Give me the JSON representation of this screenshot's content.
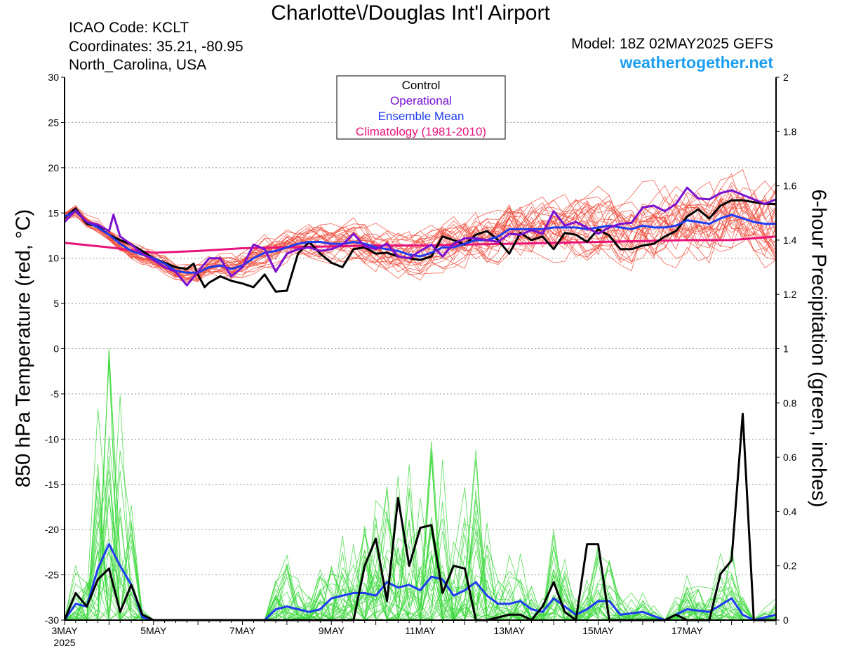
{
  "header": {
    "title": "Charlotte\\/Douglas Int'l Airport",
    "icao": "ICAO Code: KCLT",
    "coordinates": "Coordinates: 35.21, -80.95",
    "region": "North_Carolina, USA",
    "model": "Model: 18Z 02MAY2025 GEFS",
    "site": "weathertogether.net"
  },
  "colors": {
    "control": "#000000",
    "operational": "#7b10d0",
    "ensemble_mean": "#1f3cf0",
    "climatology": "#e8137a",
    "temp_members": "#f04a3a",
    "precip_members": "#3ad83a",
    "site": "#1a9ef0"
  },
  "chart_data": {
    "type": "line",
    "title": "Charlotte\\/Douglas Int'l Airport",
    "xlabel": "",
    "ylabel": "850 hPa Temperature (red, °C)",
    "ylabel_right": "6-hour Precipitation (green, inches)",
    "x_unit": "days after 3MAY2025 00Z",
    "x_ticks": [
      {
        "day": 0,
        "label": "3MAY",
        "sub": "2025"
      },
      {
        "day": 2,
        "label": "5MAY",
        "sub": ""
      },
      {
        "day": 4,
        "label": "7MAY",
        "sub": ""
      },
      {
        "day": 6,
        "label": "9MAY",
        "sub": ""
      },
      {
        "day": 8,
        "label": "11MAY",
        "sub": ""
      },
      {
        "day": 10,
        "label": "13MAY",
        "sub": ""
      },
      {
        "day": 12,
        "label": "15MAY",
        "sub": ""
      },
      {
        "day": 14,
        "label": "17MAY",
        "sub": ""
      }
    ],
    "xlim": [
      0,
      16
    ],
    "ylim_left": [
      -30,
      30
    ],
    "yticks_left": [
      30,
      25,
      20,
      15,
      10,
      5,
      0,
      -5,
      -10,
      -15,
      -20,
      -25,
      -30
    ],
    "ylim_right": [
      0,
      2
    ],
    "yticks_right": [
      "2",
      "1.8",
      "1.6",
      "1.4",
      "1.2",
      "1",
      "0.8",
      "0.6",
      "0.4",
      "0.2",
      "0"
    ],
    "grid": true,
    "legend": {
      "position": "top-center",
      "entries": [
        {
          "label": "Control",
          "color": "#000000"
        },
        {
          "label": "Operational",
          "color": "#7b10d0"
        },
        {
          "label": "Ensemble Mean",
          "color": "#1f3cf0"
        },
        {
          "label": "Climatology (1981-2010)",
          "color": "#e8137a"
        }
      ]
    },
    "temperature": {
      "control": [
        [
          0,
          14.5
        ],
        [
          0.25,
          15.5
        ],
        [
          0.5,
          13.8
        ],
        [
          0.75,
          13.5
        ],
        [
          1,
          12.6
        ],
        [
          1.25,
          12
        ],
        [
          1.5,
          11.5
        ],
        [
          1.75,
          10.8
        ],
        [
          2,
          10
        ],
        [
          2.25,
          9.5
        ],
        [
          2.5,
          9
        ],
        [
          2.75,
          8.8
        ],
        [
          2.9,
          9.4
        ],
        [
          3,
          8.2
        ],
        [
          3.15,
          6.8
        ],
        [
          3.25,
          7.3
        ],
        [
          3.5,
          8
        ],
        [
          3.75,
          7.5
        ],
        [
          4,
          7.2
        ],
        [
          4.25,
          6.8
        ],
        [
          4.5,
          8.2
        ],
        [
          4.75,
          6.3
        ],
        [
          5,
          6.4
        ],
        [
          5.25,
          10.5
        ],
        [
          5.5,
          11.8
        ],
        [
          5.75,
          10.5
        ],
        [
          6,
          9.5
        ],
        [
          6.25,
          9
        ],
        [
          6.5,
          11
        ],
        [
          6.75,
          11.2
        ],
        [
          7,
          10.5
        ],
        [
          7.25,
          10.6
        ],
        [
          7.5,
          10.2
        ],
        [
          7.75,
          10
        ],
        [
          8,
          9.8
        ],
        [
          8.25,
          10.2
        ],
        [
          8.5,
          12.4
        ],
        [
          8.75,
          12
        ],
        [
          9,
          11.5
        ],
        [
          9.25,
          12.6
        ],
        [
          9.5,
          13
        ],
        [
          9.75,
          12
        ],
        [
          10,
          10.5
        ],
        [
          10.25,
          12.8
        ],
        [
          10.5,
          12
        ],
        [
          10.75,
          12.4
        ],
        [
          11,
          11
        ],
        [
          11.25,
          12.8
        ],
        [
          11.5,
          12.6
        ],
        [
          11.75,
          11.8
        ],
        [
          12,
          13.2
        ],
        [
          12.25,
          12.5
        ],
        [
          12.5,
          11
        ],
        [
          12.75,
          11
        ],
        [
          13,
          11.4
        ],
        [
          13.25,
          11.6
        ],
        [
          13.5,
          12.4
        ],
        [
          13.75,
          13
        ],
        [
          14,
          14.6
        ],
        [
          14.25,
          15.4
        ],
        [
          14.5,
          14.4
        ],
        [
          14.75,
          15.8
        ],
        [
          15,
          16.4
        ],
        [
          15.25,
          16.4
        ],
        [
          15.5,
          16.2
        ],
        [
          15.75,
          16
        ],
        [
          16,
          16
        ]
      ],
      "operational": [
        [
          0,
          14
        ],
        [
          0.25,
          15.3
        ],
        [
          0.5,
          14
        ],
        [
          0.75,
          13.7
        ],
        [
          1,
          13
        ],
        [
          1.1,
          14.8
        ],
        [
          1.25,
          12.4
        ],
        [
          1.5,
          11.5
        ],
        [
          1.75,
          10.5
        ],
        [
          2,
          9.8
        ],
        [
          2.25,
          9
        ],
        [
          2.5,
          8.5
        ],
        [
          2.75,
          7
        ],
        [
          3,
          8.5
        ],
        [
          3.25,
          10
        ],
        [
          3.5,
          10
        ],
        [
          3.75,
          8
        ],
        [
          4,
          9
        ],
        [
          4.25,
          11.5
        ],
        [
          4.5,
          11
        ],
        [
          4.75,
          8.5
        ],
        [
          5,
          10.5
        ],
        [
          5.25,
          11
        ],
        [
          5.5,
          11.2
        ],
        [
          5.75,
          10.8
        ],
        [
          6,
          11
        ],
        [
          6.25,
          11.5
        ],
        [
          6.5,
          12.7
        ],
        [
          6.75,
          11.3
        ],
        [
          7,
          11
        ],
        [
          7.25,
          11.6
        ],
        [
          7.5,
          10.2
        ],
        [
          7.75,
          10
        ],
        [
          8,
          10.8
        ],
        [
          8.25,
          11.5
        ],
        [
          8.5,
          10.2
        ],
        [
          8.75,
          11.6
        ],
        [
          9,
          12.2
        ],
        [
          9.25,
          12.2
        ],
        [
          9.5,
          12
        ],
        [
          9.75,
          11.8
        ],
        [
          10,
          12.7
        ],
        [
          10.25,
          12.6
        ],
        [
          10.5,
          13.1
        ],
        [
          10.75,
          12.7
        ],
        [
          11,
          15.2
        ],
        [
          11.25,
          13.6
        ],
        [
          11.5,
          14
        ],
        [
          11.75,
          13.4
        ],
        [
          12,
          12.7
        ],
        [
          12.25,
          13.4
        ],
        [
          12.5,
          13.8
        ],
        [
          12.75,
          13.9
        ],
        [
          13,
          15.6
        ],
        [
          13.25,
          15.8
        ],
        [
          13.5,
          15.2
        ],
        [
          13.75,
          16
        ],
        [
          14,
          17.8
        ],
        [
          14.25,
          16.6
        ],
        [
          14.5,
          16.5
        ],
        [
          14.75,
          17.2
        ],
        [
          15,
          17.5
        ],
        [
          15.25,
          17
        ],
        [
          15.5,
          16.5
        ],
        [
          15.75,
          16
        ],
        [
          16,
          16.5
        ]
      ],
      "ensemble_mean": [
        [
          0,
          14.6
        ],
        [
          0.25,
          15.2
        ],
        [
          0.5,
          14
        ],
        [
          0.75,
          13.4
        ],
        [
          1,
          12.6
        ],
        [
          1.25,
          11.6
        ],
        [
          1.5,
          10.8
        ],
        [
          1.75,
          10.4
        ],
        [
          2,
          10
        ],
        [
          2.25,
          9.4
        ],
        [
          2.5,
          8.6
        ],
        [
          2.75,
          8.4
        ],
        [
          3,
          8.4
        ],
        [
          3.25,
          9
        ],
        [
          3.5,
          9.2
        ],
        [
          3.75,
          8.8
        ],
        [
          4,
          9.2
        ],
        [
          4.25,
          10
        ],
        [
          4.5,
          10.6
        ],
        [
          4.75,
          10.8
        ],
        [
          5,
          11.2
        ],
        [
          5.25,
          11.6
        ],
        [
          5.5,
          11.8
        ],
        [
          5.75,
          11.8
        ],
        [
          6,
          11.6
        ],
        [
          6.25,
          11.6
        ],
        [
          6.5,
          11.8
        ],
        [
          6.75,
          11.6
        ],
        [
          7,
          11.2
        ],
        [
          7.25,
          11
        ],
        [
          7.5,
          10.8
        ],
        [
          7.75,
          10.4
        ],
        [
          8,
          10.2
        ],
        [
          8.25,
          10.6
        ],
        [
          8.5,
          11.2
        ],
        [
          8.75,
          11.2
        ],
        [
          9,
          11.6
        ],
        [
          9.25,
          12
        ],
        [
          9.5,
          12
        ],
        [
          9.75,
          12.4
        ],
        [
          10,
          13.2
        ],
        [
          10.25,
          13.2
        ],
        [
          10.5,
          13.2
        ],
        [
          10.75,
          13.2
        ],
        [
          11,
          13.4
        ],
        [
          11.25,
          13.4
        ],
        [
          11.5,
          13.4
        ],
        [
          11.75,
          13.2
        ],
        [
          12,
          13.4
        ],
        [
          12.25,
          13.6
        ],
        [
          12.5,
          13.4
        ],
        [
          12.75,
          13.2
        ],
        [
          13,
          13.6
        ],
        [
          13.25,
          13.4
        ],
        [
          13.5,
          13.4
        ],
        [
          13.75,
          13.6
        ],
        [
          14,
          14.2
        ],
        [
          14.25,
          14
        ],
        [
          14.5,
          13.8
        ],
        [
          14.75,
          14.4
        ],
        [
          15,
          14.8
        ],
        [
          15.25,
          14.4
        ],
        [
          15.5,
          14
        ],
        [
          15.75,
          13.8
        ],
        [
          16,
          13.8
        ]
      ],
      "climatology": [
        [
          0,
          11.7
        ],
        [
          1,
          11.2
        ],
        [
          2,
          10.6
        ],
        [
          3,
          10.8
        ],
        [
          4,
          11.1
        ],
        [
          5,
          11.2
        ],
        [
          6,
          11.3
        ],
        [
          7,
          11.4
        ],
        [
          8,
          11.4
        ],
        [
          9,
          11.5
        ],
        [
          10,
          11.6
        ],
        [
          11,
          11.7
        ],
        [
          12,
          11.8
        ],
        [
          13,
          11.9
        ],
        [
          14,
          12
        ],
        [
          15,
          12
        ],
        [
          16,
          12.4
        ]
      ]
    },
    "precipitation": {
      "control": [
        [
          0,
          0
        ],
        [
          0.25,
          0.1
        ],
        [
          0.5,
          0.05
        ],
        [
          0.75,
          0.15
        ],
        [
          1,
          0.19
        ],
        [
          1.25,
          0.03
        ],
        [
          1.5,
          0.13
        ],
        [
          1.75,
          0.02
        ],
        [
          2,
          0
        ],
        [
          4,
          0
        ],
        [
          6,
          0
        ],
        [
          6.5,
          0
        ],
        [
          6.75,
          0.2
        ],
        [
          7,
          0.3
        ],
        [
          7.25,
          0.07
        ],
        [
          7.5,
          0.45
        ],
        [
          7.75,
          0.2
        ],
        [
          8,
          0.34
        ],
        [
          8.25,
          0.35
        ],
        [
          8.5,
          0.1
        ],
        [
          8.75,
          0.2
        ],
        [
          9,
          0.19
        ],
        [
          9.25,
          0
        ],
        [
          9.5,
          0
        ],
        [
          10,
          0.02
        ],
        [
          10.25,
          0.02
        ],
        [
          10.5,
          0
        ],
        [
          10.75,
          0.05
        ],
        [
          11,
          0.14
        ],
        [
          11.25,
          0.03
        ],
        [
          11.5,
          0
        ],
        [
          11.75,
          0.28
        ],
        [
          12,
          0.28
        ],
        [
          12.25,
          0
        ],
        [
          13,
          0
        ],
        [
          13.5,
          0
        ],
        [
          13.75,
          0.02
        ],
        [
          14,
          0
        ],
        [
          14.5,
          0
        ],
        [
          14.75,
          0.17
        ],
        [
          15,
          0.22
        ],
        [
          15.25,
          0.76
        ],
        [
          15.5,
          0
        ],
        [
          16,
          0
        ]
      ],
      "ensemble_mean": [
        [
          0,
          0
        ],
        [
          0.25,
          0.06
        ],
        [
          0.5,
          0.05
        ],
        [
          0.75,
          0.19
        ],
        [
          1,
          0.28
        ],
        [
          1.25,
          0.2
        ],
        [
          1.5,
          0.13
        ],
        [
          1.75,
          0.01
        ],
        [
          2,
          0
        ],
        [
          3,
          0
        ],
        [
          4,
          0
        ],
        [
          4.5,
          0
        ],
        [
          4.75,
          0.04
        ],
        [
          5,
          0.05
        ],
        [
          5.25,
          0.04
        ],
        [
          5.5,
          0.03
        ],
        [
          5.75,
          0.04
        ],
        [
          6,
          0.08
        ],
        [
          6.25,
          0.09
        ],
        [
          6.5,
          0.1
        ],
        [
          6.75,
          0.1
        ],
        [
          7,
          0.09
        ],
        [
          7.25,
          0.14
        ],
        [
          7.5,
          0.12
        ],
        [
          7.75,
          0.13
        ],
        [
          8,
          0.11
        ],
        [
          8.25,
          0.16
        ],
        [
          8.5,
          0.15
        ],
        [
          8.75,
          0.09
        ],
        [
          9,
          0.11
        ],
        [
          9.25,
          0.14
        ],
        [
          9.5,
          0.09
        ],
        [
          9.75,
          0.06
        ],
        [
          10,
          0.06
        ],
        [
          10.25,
          0.07
        ],
        [
          10.5,
          0.04
        ],
        [
          10.75,
          0.03
        ],
        [
          11,
          0.08
        ],
        [
          11.25,
          0.05
        ],
        [
          11.5,
          0.02
        ],
        [
          11.75,
          0.04
        ],
        [
          12,
          0.07
        ],
        [
          12.25,
          0.07
        ],
        [
          12.5,
          0.02
        ],
        [
          13,
          0.03
        ],
        [
          13.5,
          0
        ],
        [
          14,
          0.04
        ],
        [
          14.5,
          0.03
        ],
        [
          15,
          0.08
        ],
        [
          15.25,
          0.02
        ],
        [
          15.5,
          0
        ],
        [
          16,
          0.02
        ]
      ]
    }
  }
}
